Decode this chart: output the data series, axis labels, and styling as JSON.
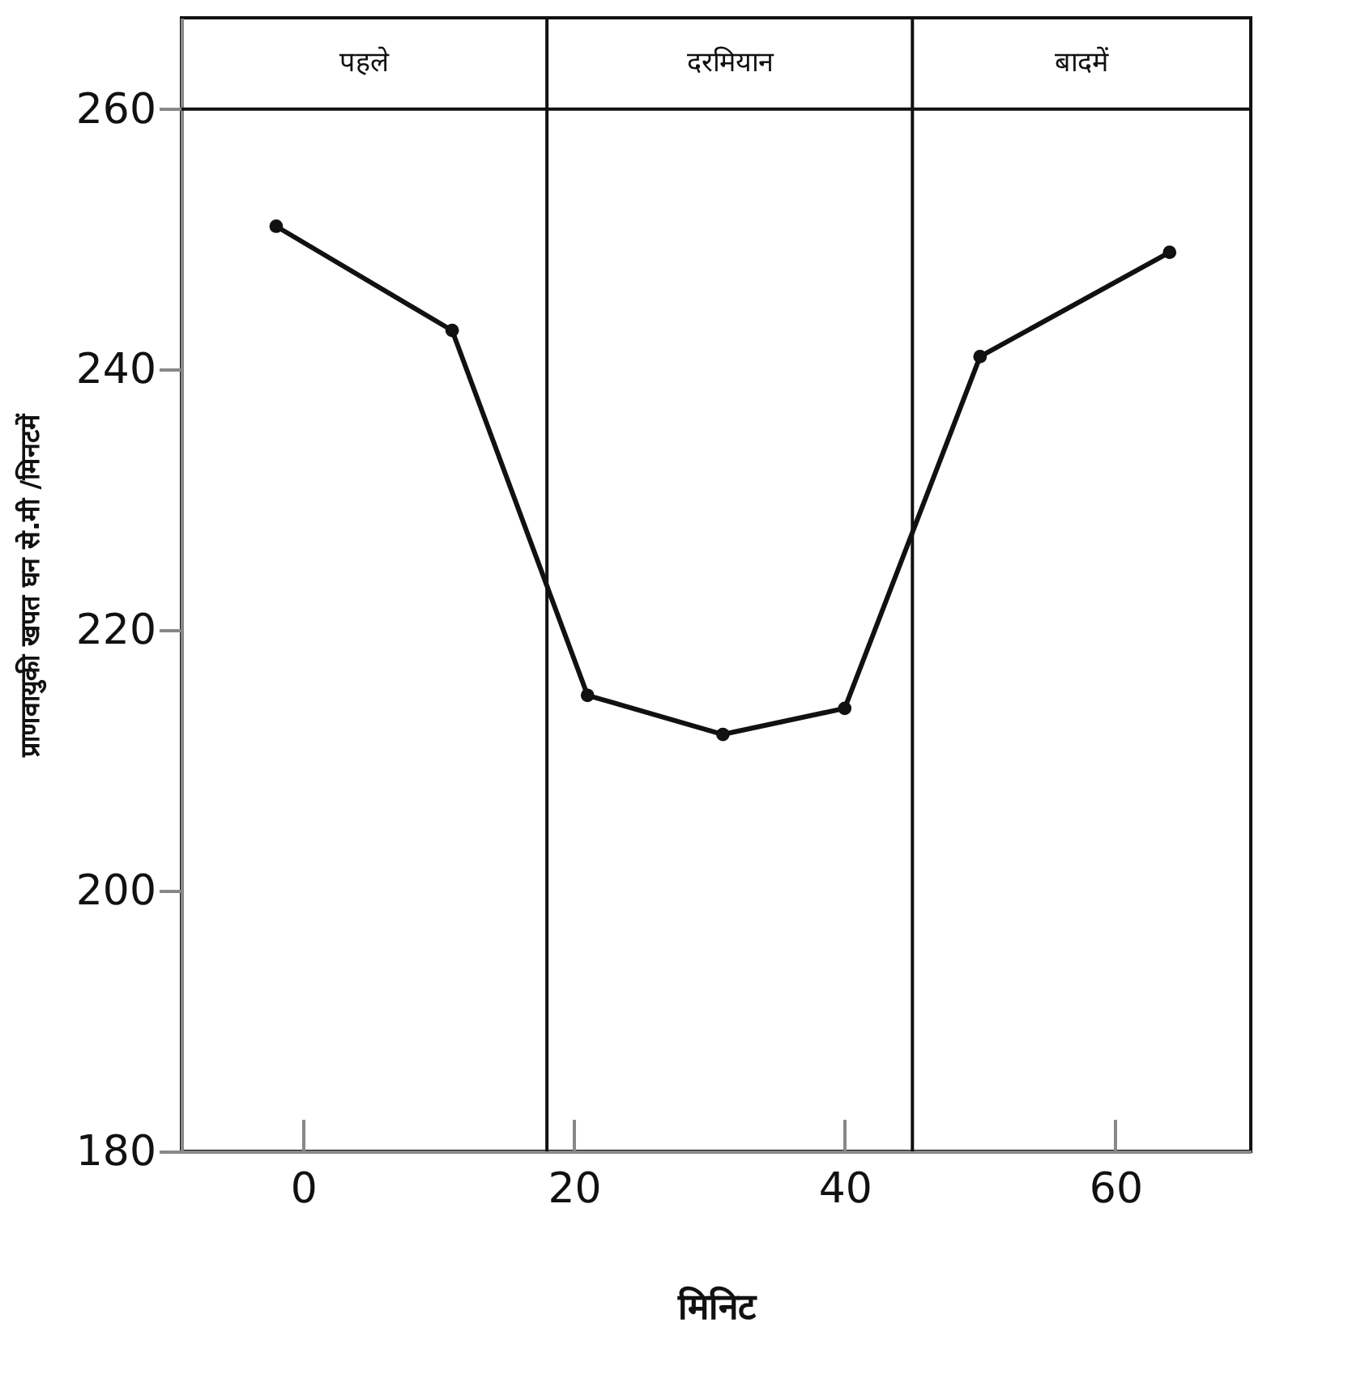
{
  "chart_data": {
    "type": "line",
    "xlabel": "मिनिट",
    "ylabel": "प्राणवायुकी खपत घन से.मी /मिनटमें",
    "x": [
      -2,
      11,
      21,
      31,
      40,
      50,
      64
    ],
    "series": [
      {
        "color": "#111111",
        "values": [
          251,
          243,
          215,
          212,
          214,
          241,
          249
        ]
      }
    ],
    "xlim": [
      -9,
      70
    ],
    "xticks": [
      0,
      20,
      40,
      60
    ],
    "ylim": [
      180,
      267
    ],
    "yticks": [
      180,
      200,
      220,
      240,
      260
    ],
    "grid": false,
    "marker": "circle",
    "line_style": "solid",
    "ref_lines": [
      {
        "axis": "x",
        "value": 18,
        "label": null
      },
      {
        "axis": "x",
        "value": 45,
        "label": null
      },
      {
        "axis": "y",
        "value": 260,
        "label": null
      }
    ],
    "annotations": [
      "पहले",
      "दरमियान",
      "बादमें"
    ]
  }
}
